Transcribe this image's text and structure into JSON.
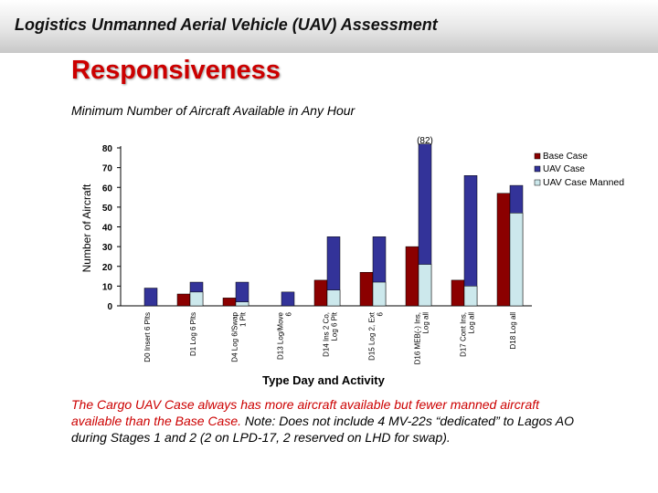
{
  "header": {
    "banner_title": "Logistics Unmanned Aerial Vehicle (UAV) Assessment"
  },
  "slide": {
    "title": "Responsiveness",
    "subtitle": "Minimum Number of Aircraft Available in Any Hour",
    "note_red": "The Cargo UAV Case always has more aircraft available but fewer manned aircraft available than the Base Case.",
    "note_dark": "Note: Does not include 4 MV-22s “dedicated” to Lagos AO during Stages 1 and 2 (2 on LPD-17, 2 reserved on LHD for swap)."
  },
  "colors": {
    "base": "#8b0000",
    "uav": "#333399",
    "manned": "#cce8ec"
  },
  "chart_data": {
    "type": "bar",
    "title": "",
    "xlabel": "Type Day and Activity",
    "ylabel": "Number of Aircraft",
    "ylim": [
      0,
      80
    ],
    "yticks": [
      0,
      10,
      20,
      30,
      40,
      50,
      60,
      70,
      80
    ],
    "grid": false,
    "legend_position": "right",
    "categories": [
      [
        "D0 Insert 6 Plts"
      ],
      [
        "D1 Log 6 Plts"
      ],
      [
        "D4 Log 6/Swap",
        "1 Plt"
      ],
      [
        "D13 Log/Move",
        "6"
      ],
      [
        "D14 Ins 2 Co,",
        "Log 6 Plt"
      ],
      [
        "D15 Log 2, Ext",
        "6"
      ],
      [
        "D16 MEB(-) Ins,",
        "Log all"
      ],
      [
        "D17 Cont Ins,",
        "Log all"
      ],
      [
        "D18 Log all"
      ]
    ],
    "series": [
      {
        "name": "Base Case",
        "values": [
          0,
          6,
          4,
          0,
          13,
          17,
          30,
          13,
          57
        ]
      },
      {
        "name": "UAV Case",
        "values": [
          9,
          12,
          12,
          7,
          35,
          35,
          82,
          66,
          61
        ]
      },
      {
        "name": "UAV Case Manned",
        "values": [
          0,
          7,
          2,
          0,
          8,
          12,
          21,
          10,
          47
        ]
      }
    ],
    "annotations": [
      {
        "category_index": 6,
        "text": "(82)"
      }
    ]
  }
}
